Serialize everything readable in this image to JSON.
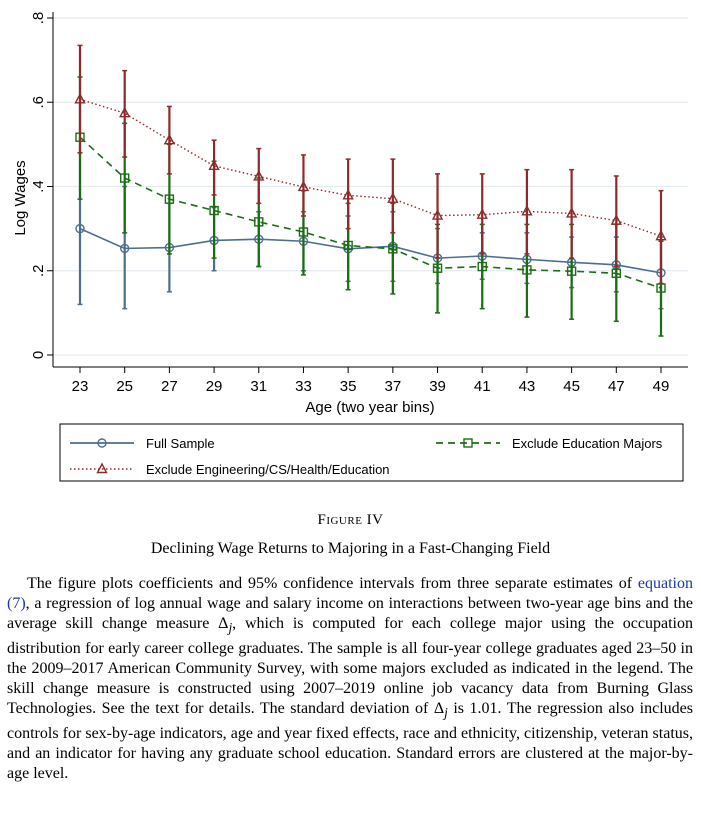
{
  "chart_data": {
    "type": "line",
    "xlabel": "Age (two year bins)",
    "ylabel": "Log Wages",
    "x": [
      23,
      25,
      27,
      29,
      31,
      33,
      35,
      37,
      39,
      41,
      43,
      45,
      47,
      49
    ],
    "xticks": [
      "23",
      "25",
      "27",
      "29",
      "31",
      "33",
      "35",
      "37",
      "39",
      "41",
      "43",
      "45",
      "47",
      "49"
    ],
    "yticks": [
      "0",
      ".2",
      ".4",
      ".6",
      ".8"
    ],
    "ylim": [
      0,
      0.8
    ],
    "grid": true,
    "legend_position": "bottom",
    "series": [
      {
        "name": "Full Sample",
        "style": "solid",
        "marker": "circle",
        "color": "#4a6f8f",
        "values": [
          0.3,
          0.253,
          0.255,
          0.272,
          0.275,
          0.27,
          0.252,
          0.258,
          0.23,
          0.235,
          0.227,
          0.22,
          0.214,
          0.195
        ],
        "ci_low": [
          0.12,
          0.11,
          0.15,
          0.2,
          0.21,
          0.2,
          0.175,
          0.175,
          0.17,
          0.18,
          0.17,
          0.16,
          0.15,
          0.11
        ],
        "ci_high": [
          0.48,
          0.4,
          0.36,
          0.35,
          0.34,
          0.34,
          0.33,
          0.34,
          0.3,
          0.29,
          0.29,
          0.28,
          0.28,
          0.28
        ]
      },
      {
        "name": "Exclude Education Majors",
        "style": "dashed",
        "marker": "square",
        "color": "#1a6e12",
        "values": [
          0.517,
          0.42,
          0.37,
          0.343,
          0.316,
          0.292,
          0.26,
          0.252,
          0.206,
          0.21,
          0.202,
          0.199,
          0.194,
          0.159
        ],
        "ci_low": [
          0.37,
          0.29,
          0.24,
          0.23,
          0.21,
          0.19,
          0.155,
          0.145,
          0.1,
          0.11,
          0.09,
          0.085,
          0.08,
          0.045
        ],
        "ci_high": [
          0.66,
          0.55,
          0.5,
          0.46,
          0.42,
          0.39,
          0.36,
          0.36,
          0.31,
          0.31,
          0.31,
          0.31,
          0.31,
          0.27
        ]
      },
      {
        "name": "Exclude Engineering/CS/Health/Education",
        "style": "dotted",
        "marker": "triangle",
        "color": "#8f2a2a",
        "values": [
          0.607,
          0.574,
          0.51,
          0.449,
          0.424,
          0.399,
          0.379,
          0.371,
          0.331,
          0.333,
          0.341,
          0.336,
          0.319,
          0.282
        ],
        "ci_low": [
          0.48,
          0.47,
          0.43,
          0.38,
          0.36,
          0.33,
          0.3,
          0.29,
          0.23,
          0.24,
          0.24,
          0.23,
          0.21,
          0.17
        ],
        "ci_high": [
          0.735,
          0.675,
          0.59,
          0.51,
          0.49,
          0.475,
          0.465,
          0.465,
          0.43,
          0.43,
          0.44,
          0.44,
          0.425,
          0.39
        ]
      }
    ]
  },
  "figure": {
    "label": "Figure IV",
    "title": "Declining Wage Returns to Majoring in a Fast-Changing Field"
  },
  "caption": {
    "part1": "The figure plots coefficients and 95% confidence intervals from three separate estimates of ",
    "link": "equation (7)",
    "part2": ", a regression of log annual wage and salary income on interactions between two-year age bins and the average skill change measure Δ",
    "sub1": "j",
    "part3": ", which is computed for each college major using the occupation distribution for early career college graduates. The sample is all four-year college graduates aged 23–50 in the 2009–2017 American Community Survey, with some majors excluded as indicated in the legend. The skill change measure is constructed using 2007–2019 online job vacancy data from Burning Glass Technologies. See the text for details. The standard deviation of Δ",
    "sub2": "j",
    "part4": " is 1.01. The regression also includes controls for sex-by-age indicators, age and year fixed effects, race and ethnicity, citizenship, veteran status, and an indicator for having any graduate school education. Standard errors are clustered at the major-by-age level."
  }
}
